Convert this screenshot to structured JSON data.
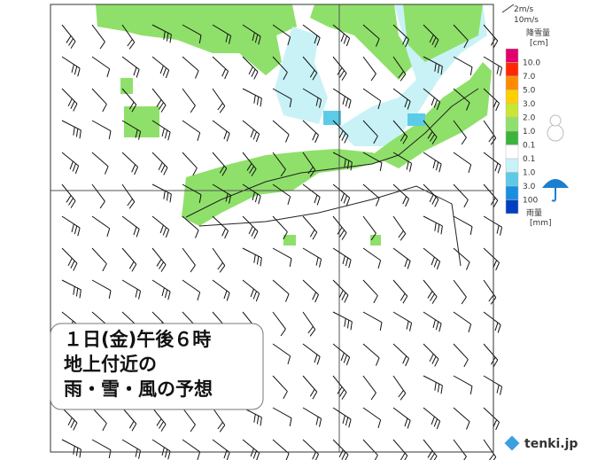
{
  "title_box": {
    "lines": [
      "１日(金)午後６時",
      "地上付近の",
      "雨・雪・風の予想"
    ]
  },
  "legend": {
    "wind": [
      "2m/s",
      "10m/s"
    ],
    "snow": {
      "label": "降雪量",
      "unit": "[cm]",
      "ticks": [
        "10.0",
        "7.0",
        "5.0",
        "3.0",
        "2.0",
        "1.0",
        "0.1"
      ]
    },
    "rain": {
      "label": "雨量",
      "unit": "[mm]",
      "ticks": [
        "0.1",
        "1.0",
        "3.0",
        "100"
      ]
    }
  },
  "logo": "tenki.jp"
}
